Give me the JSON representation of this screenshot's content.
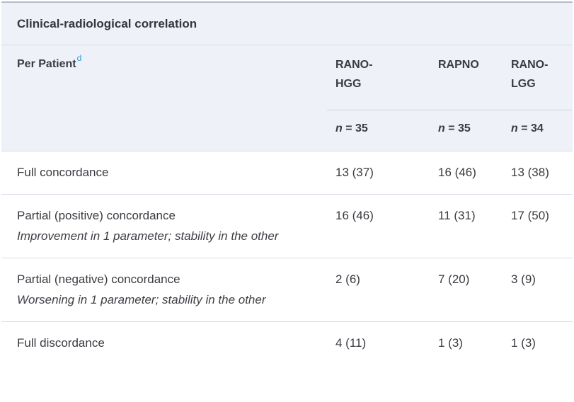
{
  "table": {
    "title": "Clinical-radiological correlation",
    "row_group": {
      "label": "Per Patient",
      "footnote_ref": "d"
    },
    "columns": [
      {
        "label": "RANO-\nHGG",
        "n_var": "n",
        "n_rest": "= 35"
      },
      {
        "label": "RAPNO",
        "n_var": "n",
        "n_rest": "= 35"
      },
      {
        "label": "RANO-\nLGG",
        "n_var": "n",
        "n_rest": "= 34"
      }
    ],
    "rows": [
      {
        "label": "Full concordance",
        "values": [
          "13 (37)",
          "16 (46)",
          "13 (38)"
        ]
      },
      {
        "label": "Partial (positive) concordance",
        "sublabel": "Improvement in 1 parameter; stability in the other",
        "values": [
          "16 (46)",
          "11 (31)",
          "17 (50)"
        ]
      },
      {
        "label": "Partial (negative) concordance",
        "sublabel": "Worsening in 1 parameter; stability in the other",
        "values": [
          "2 (6)",
          "7 (20)",
          "3 (9)"
        ]
      },
      {
        "label": "Full discordance",
        "values": [
          "4 (11)",
          "1 (3)",
          "1 (3)"
        ]
      }
    ],
    "colors": {
      "header_bg": "#eef1f7",
      "separator": "#d7dbe6",
      "top_border": "#b5bbc8",
      "text": "#3a3b41",
      "footnote_link": "#2d9fd6"
    }
  }
}
